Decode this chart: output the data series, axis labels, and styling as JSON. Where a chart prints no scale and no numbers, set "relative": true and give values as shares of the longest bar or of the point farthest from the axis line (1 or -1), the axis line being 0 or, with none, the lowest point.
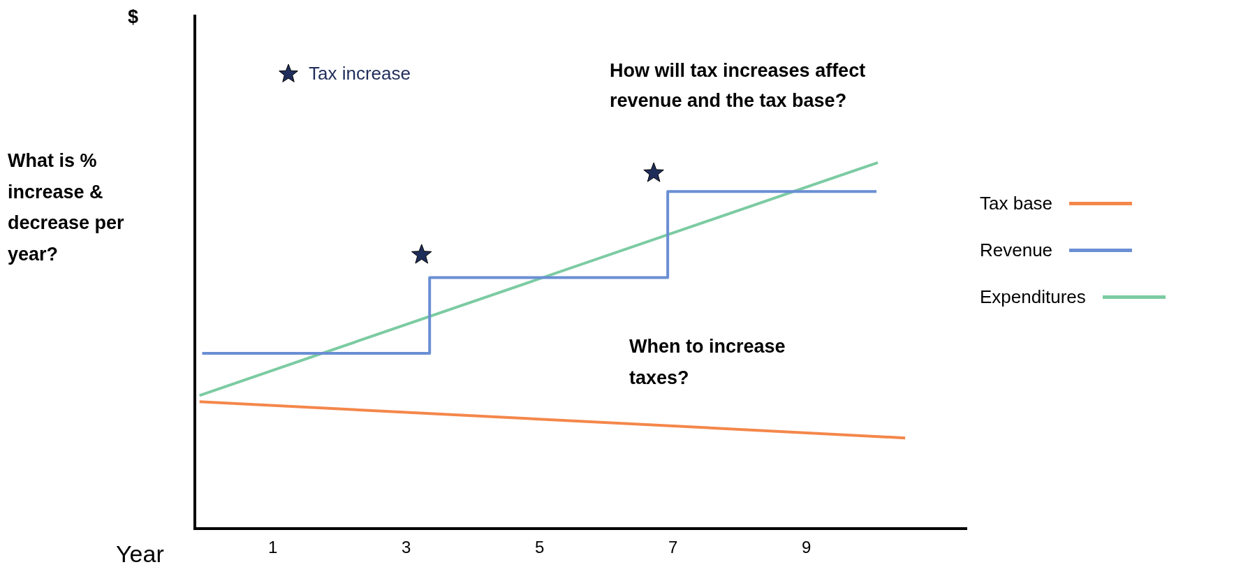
{
  "chart_data": {
    "type": "line",
    "relative": true,
    "xlabel": "Year",
    "xlim": [
      -0.17,
      11.4
    ],
    "xticks": [
      1,
      3,
      5,
      7,
      9
    ],
    "grid": false,
    "legend": "right",
    "marker": "none",
    "line_style": "solid",
    "annotations": [
      "What is % increase & decrease per year?",
      "How will tax increases affect revenue and the tax base?",
      "When to increase taxes?",
      "$"
    ],
    "series": [
      {
        "name": "Tax base",
        "color": "#f4874b",
        "x": [
          -0.1,
          10.48
        ],
        "values": [
          0.347,
          0.248
        ]
      },
      {
        "name": "Revenue",
        "type": "step",
        "color": "#6a8fd4",
        "x": [
          -0.06,
          3.35,
          6.92,
          10.05
        ],
        "values": [
          0.479,
          0.686,
          0.921,
          0.921
        ]
      },
      {
        "name": "Expenditures",
        "color": "#7ccba2",
        "x": [
          -0.1,
          10.07
        ],
        "values": [
          0.364,
          1
        ]
      },
      {
        "name": "Tax increase",
        "type": "scatter",
        "marker": "star",
        "color": "#1f2d5a",
        "x": [
          3.23,
          6.71
        ],
        "values": [
          0.748,
          0.971
        ]
      }
    ]
  }
}
